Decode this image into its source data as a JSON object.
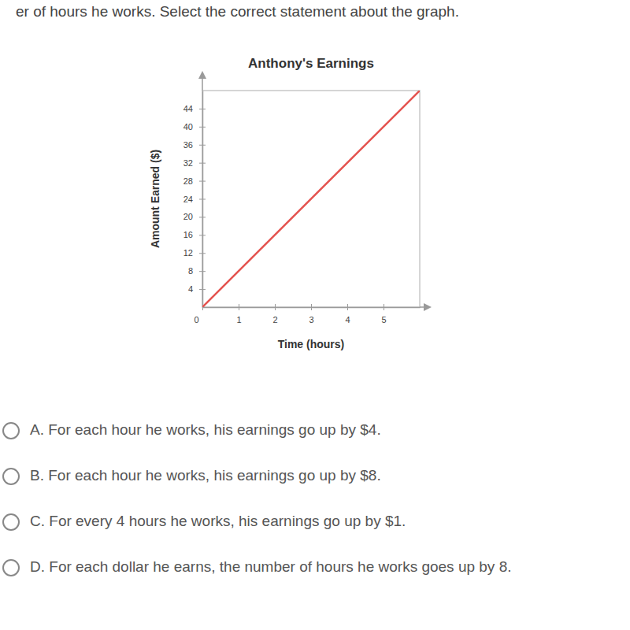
{
  "chart_data": {
    "type": "line",
    "title": "Anthony's Earnings",
    "x_label": "Time (hours)",
    "y_label": "Amount Earned ($)",
    "x": [
      0,
      6
    ],
    "values": [
      0,
      48
    ],
    "color": "#e4534f",
    "xlim": [
      0,
      6
    ],
    "xticks": [
      0,
      1,
      2,
      3,
      4,
      5
    ],
    "ylim": [
      0,
      48
    ],
    "yticks": [
      4,
      8,
      12,
      16,
      20,
      24,
      28,
      32,
      36,
      40,
      44
    ],
    "grid": false,
    "annotations": [
      "er of hours he works. Select the correct statement about the graph.",
      "A. For each hour he works, his earnings go up by $4.",
      "B. For each hour he works, his earnings go up by $8.",
      "C. For every 4 hours he works, his earnings go up by $1.",
      "D. For each dollar he earns, the number of hours he works goes up by 8."
    ]
  }
}
